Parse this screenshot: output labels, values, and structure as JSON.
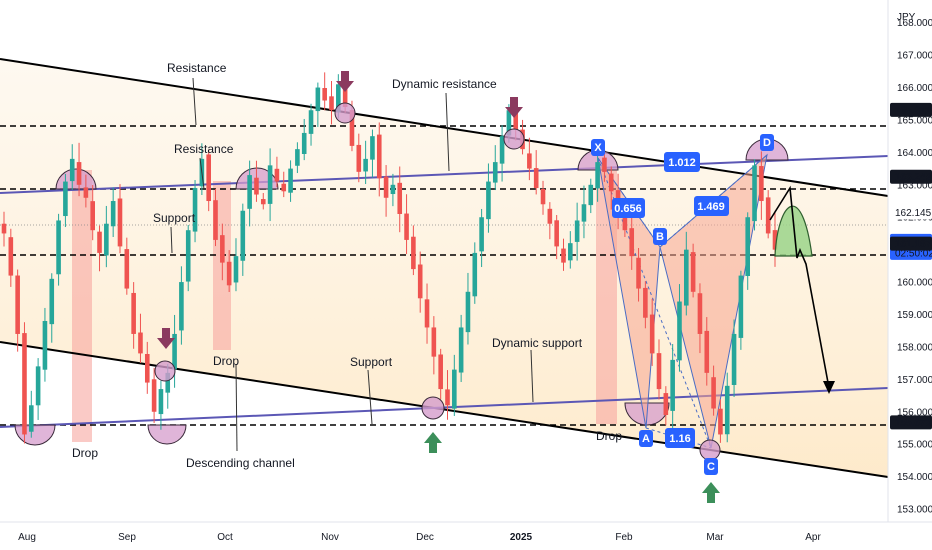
{
  "chart_data": {
    "type": "candlestick",
    "currency": "JPY",
    "yticks": [
      153,
      154,
      155,
      156,
      157,
      158,
      159,
      160,
      161,
      162,
      163,
      164,
      165,
      166,
      167,
      168
    ],
    "ylim": [
      152.6,
      168.7
    ],
    "x_labels": [
      "Aug",
      "Sep",
      "Oct",
      "Nov",
      "Dec",
      "2025",
      "Feb",
      "Mar",
      "Apr"
    ],
    "price_tags": [
      {
        "value": "165.311",
        "style": "dark"
      },
      {
        "value": "163.249",
        "style": "dark"
      },
      {
        "value": "162.145",
        "style": "plain"
      },
      {
        "value": "161.270",
        "style": "blue",
        "sub": "02:50:02"
      },
      {
        "value": "161.187",
        "style": "dark"
      },
      {
        "value": "155.673",
        "style": "dark"
      }
    ],
    "annotations": [
      "Resistance",
      "Resistance",
      "Support",
      "Dynamic resistance",
      "Dynamic support",
      "Support",
      "Descending channel",
      "Drop",
      "Drop",
      "Drop"
    ],
    "pattern_points": [
      "X",
      "A",
      "B",
      "C",
      "D"
    ],
    "pattern_ratios": [
      "0.656",
      "1.469",
      "1.16",
      "1.012"
    ],
    "horizontal_levels": [
      165.311,
      163.249,
      161.187,
      155.673
    ],
    "series": [
      {
        "name": "USDJPY",
        "close": [
          161.5,
          160.2,
          158.4,
          155.3,
          156.2,
          157.4,
          158.8,
          160.1,
          161.9,
          163.1,
          163.8,
          163.0,
          162.6,
          161.6,
          160.9,
          161.8,
          162.5,
          161.1,
          159.8,
          158.4,
          157.8,
          156.9,
          156.0,
          156.7,
          157.2,
          158.4,
          160.0,
          161.6,
          162.9,
          163.8,
          162.5,
          161.3,
          160.6,
          159.9,
          160.8,
          162.2,
          163.3,
          162.7,
          162.4,
          163.6,
          163.1,
          162.8,
          163.5,
          164.1,
          164.6,
          165.3,
          166.0,
          165.6,
          165.3,
          166.1,
          165.4,
          164.2,
          163.4,
          163.8,
          164.5,
          163.2,
          162.6,
          163.0,
          162.1,
          161.3,
          160.4,
          159.5,
          158.6,
          157.7,
          156.7,
          156.2,
          157.3,
          158.6,
          159.7,
          160.9,
          162.0,
          163.1,
          163.7,
          164.5,
          165.3,
          164.7,
          164.1,
          163.5,
          162.9,
          162.4,
          161.8,
          161.1,
          160.6,
          161.2,
          161.9,
          162.4,
          163.0,
          163.7,
          163.4,
          162.8,
          162.1,
          161.6,
          160.8,
          159.8,
          158.9,
          157.8,
          156.7,
          155.9,
          157.6,
          159.4,
          161.0,
          159.7,
          158.4,
          157.2,
          156.1,
          155.3,
          156.8,
          158.4,
          160.2,
          162.0,
          163.6,
          162.5,
          161.5,
          161.0
        ]
      }
    ]
  }
}
